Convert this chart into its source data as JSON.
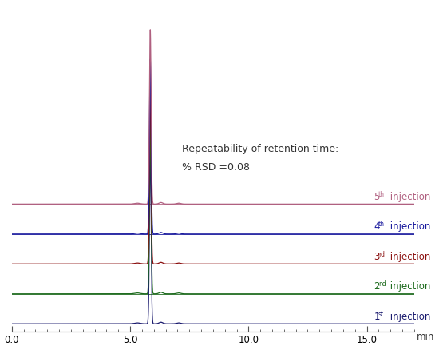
{
  "annotation_line1": "Repeatability of retention time:",
  "annotation_line2": "% RSD =0.08",
  "xlabel": "min",
  "xlim": [
    0.0,
    17.0
  ],
  "xticks": [
    0.0,
    5.0,
    10.0,
    15.0
  ],
  "xticklabels": [
    "0.0",
    "5.0",
    "10.0",
    "15.0"
  ],
  "colors": [
    "#1a1a6e",
    "#1e6b1e",
    "#8b1010",
    "#1a1a9e",
    "#b06080"
  ],
  "ordinals": [
    "1",
    "2",
    "3",
    "4",
    "5"
  ],
  "superscripts": [
    "st",
    "nd",
    "rd",
    "th",
    "th"
  ],
  "offsets": [
    0.0,
    0.12,
    0.24,
    0.36,
    0.48
  ],
  "peak_scale": 0.09,
  "main_peak_scale": 0.7,
  "background_color": "#ffffff"
}
